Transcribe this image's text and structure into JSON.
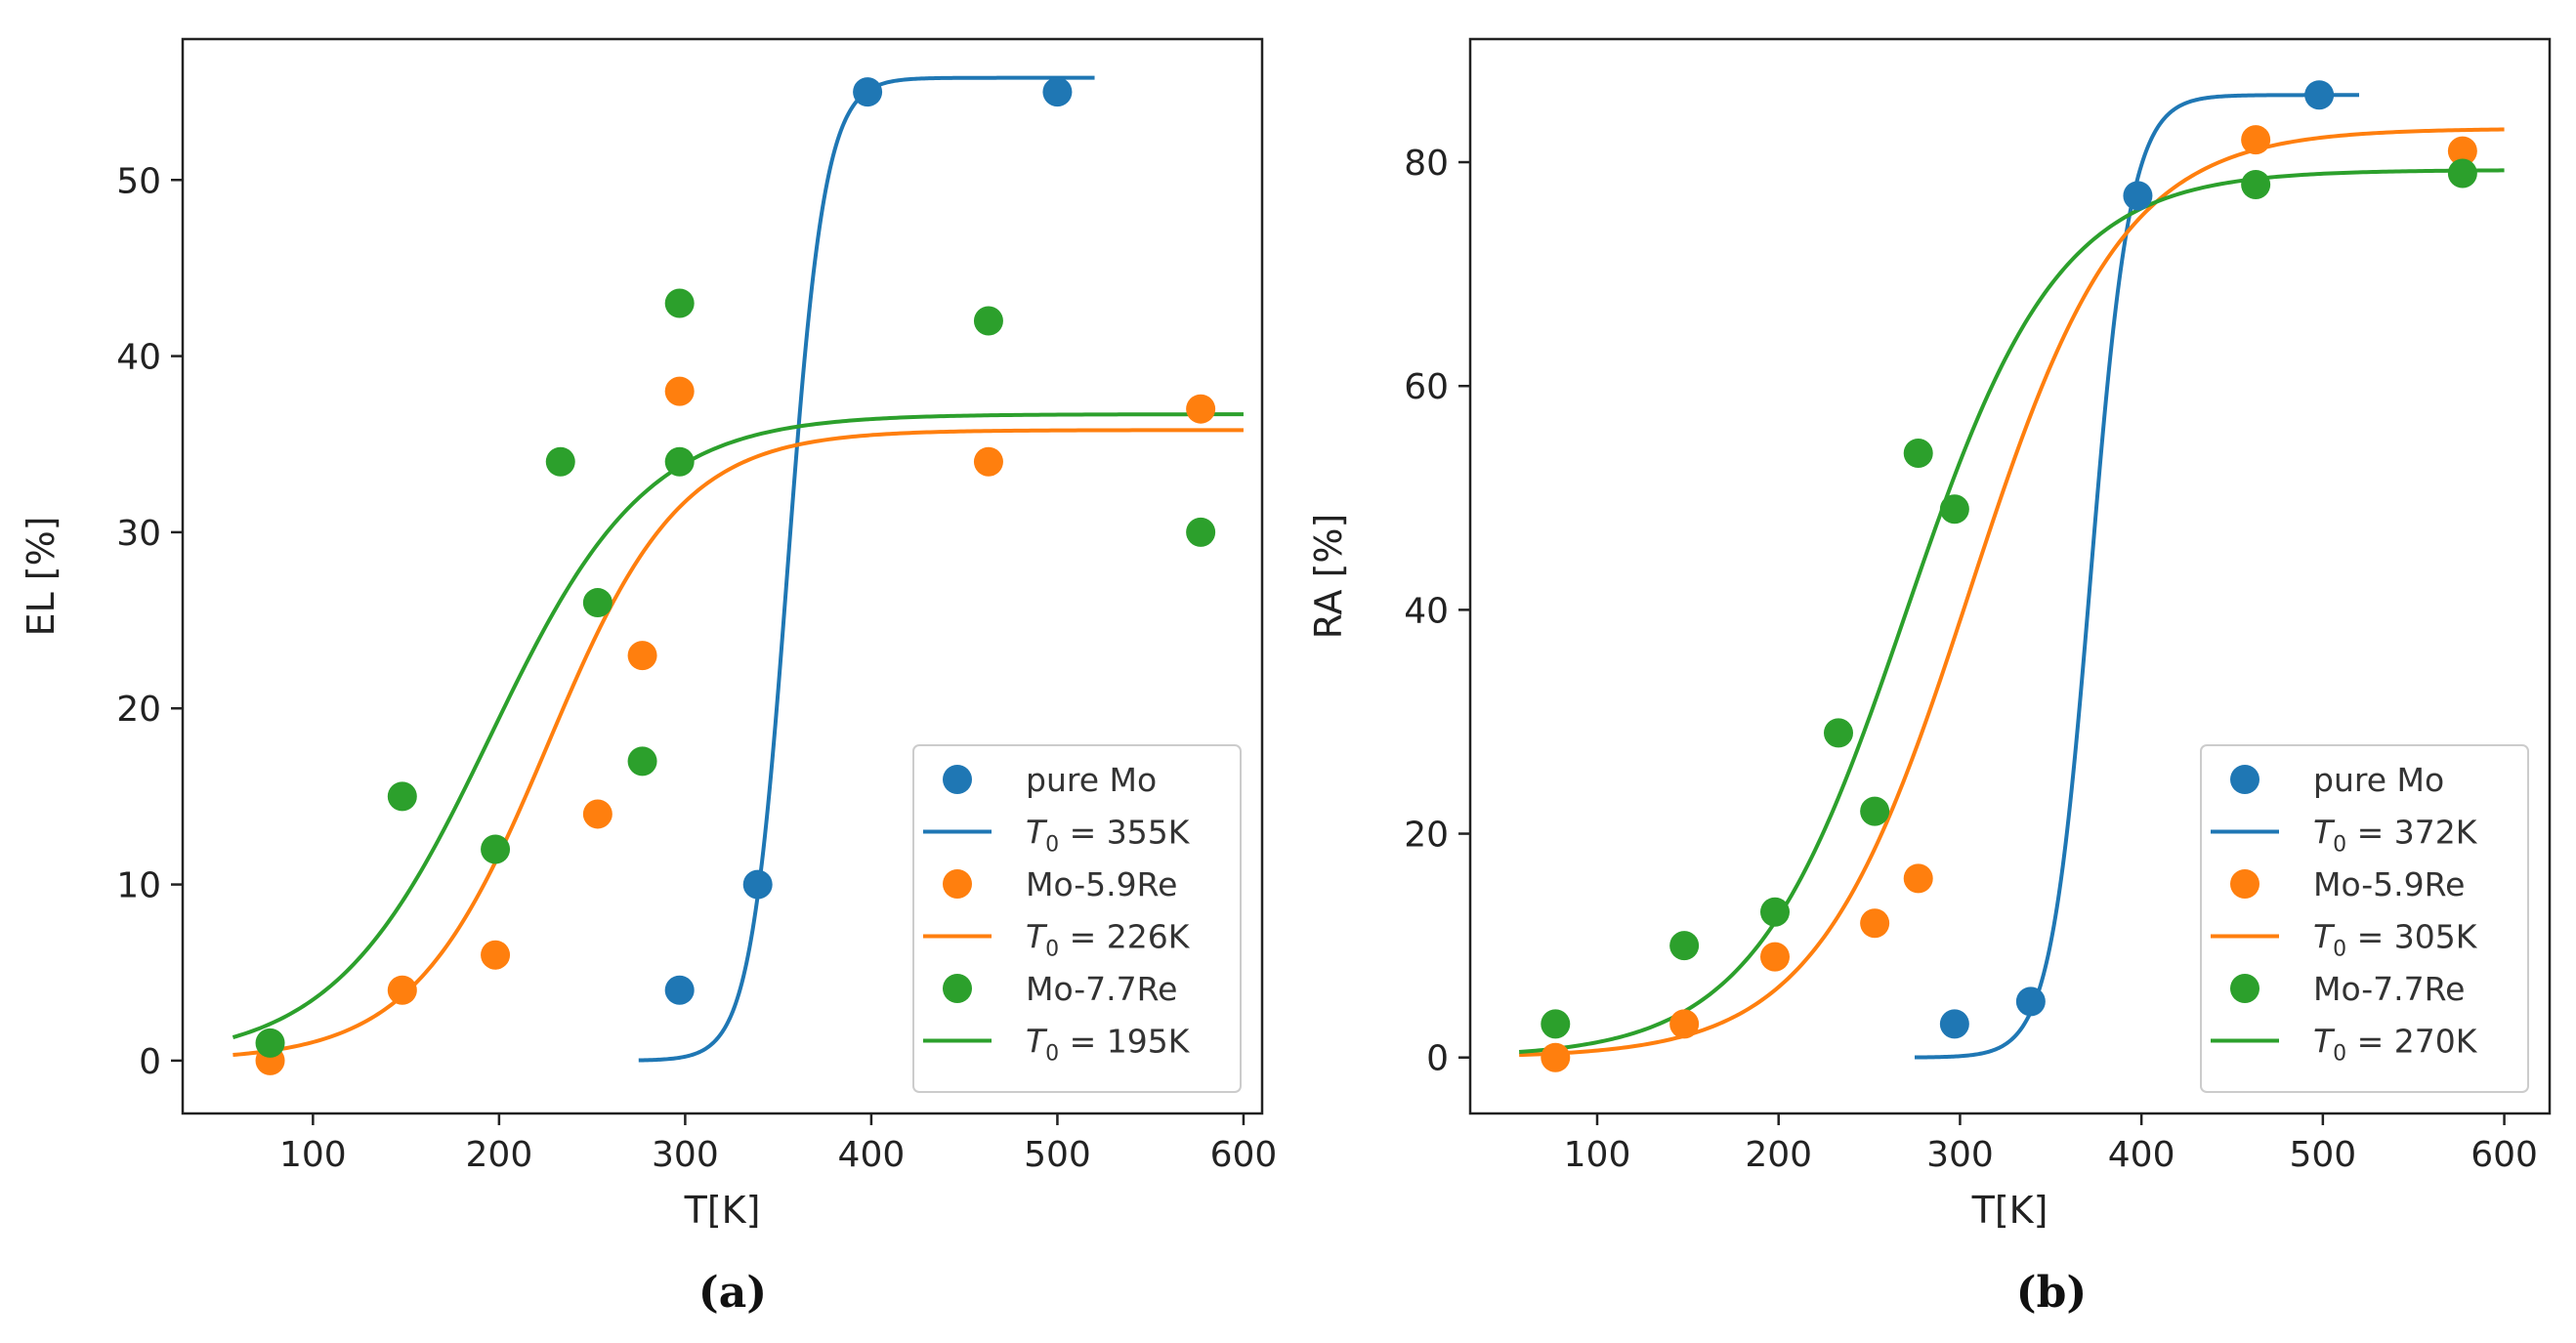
{
  "chart_data": [
    {
      "type": "scatter",
      "caption": "(a)",
      "xlabel": "T[K]",
      "ylabel": "EL [%]",
      "xlim": [
        30,
        610
      ],
      "ylim": [
        -3,
        58
      ],
      "xticks": [
        100,
        200,
        300,
        400,
        500,
        600
      ],
      "yticks": [
        0,
        10,
        20,
        30,
        40,
        50
      ],
      "legend_position": "lower-right",
      "series": [
        {
          "name": "pure Mo",
          "color": "#1f77b4",
          "points": [
            [
              297,
              4
            ],
            [
              339,
              10
            ],
            [
              398,
              55
            ],
            [
              500,
              55
            ]
          ],
          "fit_label": "T_0 = 355K",
          "T0": 355,
          "fit_max": 55.8,
          "fit_scale": 10,
          "fit_range": [
            275,
            520
          ]
        },
        {
          "name": "Mo-5.9Re",
          "color": "#ff7f0e",
          "points": [
            [
              77,
              0
            ],
            [
              148,
              4
            ],
            [
              198,
              6
            ],
            [
              253,
              14
            ],
            [
              277,
              23
            ],
            [
              297,
              38
            ],
            [
              463,
              34
            ],
            [
              577,
              37
            ]
          ],
          "fit_label": "T_0 = 226K",
          "T0": 226,
          "fit_max": 35.8,
          "fit_scale": 36,
          "fit_range": [
            57,
            600
          ]
        },
        {
          "name": "Mo-7.7Re",
          "color": "#2ca02c",
          "points": [
            [
              77,
              1
            ],
            [
              148,
              15
            ],
            [
              198,
              12
            ],
            [
              233,
              34
            ],
            [
              253,
              26
            ],
            [
              277,
              17
            ],
            [
              297,
              34
            ],
            [
              297,
              43
            ],
            [
              463,
              42
            ],
            [
              577,
              30
            ]
          ],
          "fit_label": "T_0 = 195K",
          "T0": 195,
          "fit_max": 36.7,
          "fit_scale": 42,
          "fit_range": [
            57,
            600
          ]
        }
      ]
    },
    {
      "type": "scatter",
      "caption": "(b)",
      "xlabel": "T[K]",
      "ylabel": "RA [%]",
      "xlim": [
        30,
        625
      ],
      "ylim": [
        -5,
        91
      ],
      "xticks": [
        100,
        200,
        300,
        400,
        500,
        600
      ],
      "yticks": [
        0,
        20,
        40,
        60,
        80
      ],
      "legend_position": "lower-right",
      "series": [
        {
          "name": "pure Mo",
          "color": "#1f77b4",
          "points": [
            [
              297,
              3
            ],
            [
              339,
              5
            ],
            [
              398,
              77
            ],
            [
              498,
              86
            ]
          ],
          "fit_label": "T_0 = 372K",
          "T0": 372,
          "fit_max": 86,
          "fit_scale": 11,
          "fit_range": [
            275,
            520
          ]
        },
        {
          "name": "Mo-5.9Re",
          "color": "#ff7f0e",
          "points": [
            [
              77,
              0
            ],
            [
              148,
              3
            ],
            [
              198,
              9
            ],
            [
              253,
              12
            ],
            [
              277,
              16
            ],
            [
              463,
              82
            ],
            [
              577,
              81
            ]
          ],
          "fit_label": "T_0 = 305K",
          "T0": 305,
          "fit_max": 83,
          "fit_scale": 42,
          "fit_range": [
            57,
            600
          ]
        },
        {
          "name": "Mo-7.7Re",
          "color": "#2ca02c",
          "points": [
            [
              77,
              3
            ],
            [
              148,
              10
            ],
            [
              198,
              13
            ],
            [
              233,
              29
            ],
            [
              253,
              22
            ],
            [
              277,
              54
            ],
            [
              297,
              49
            ],
            [
              463,
              78
            ],
            [
              577,
              79
            ]
          ],
          "fit_label": "T_0 = 270K",
          "T0": 270,
          "fit_max": 79.3,
          "fit_scale": 42,
          "fit_range": [
            57,
            600
          ]
        }
      ]
    }
  ]
}
